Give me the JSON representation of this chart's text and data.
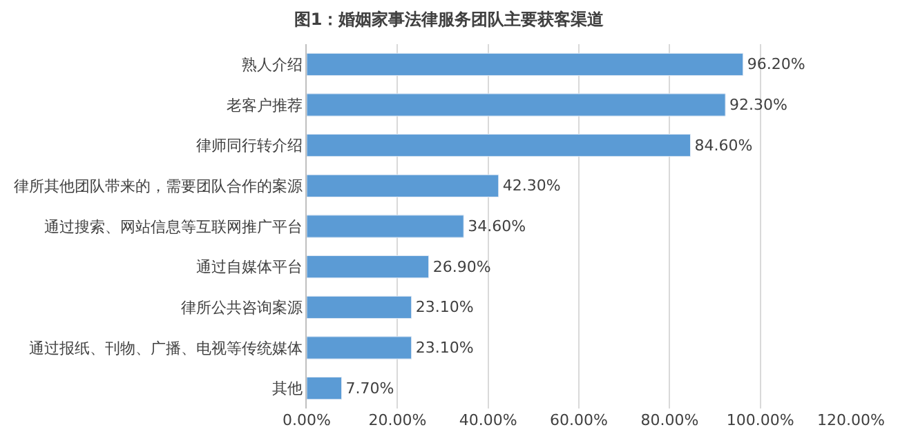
{
  "chart_data": {
    "type": "bar",
    "orientation": "horizontal",
    "title": "图1：婚姻家事法律服务团队主要获客渠道",
    "categories": [
      "熟人介绍",
      "老客户推荐",
      "律师同行转介绍",
      "律所其他团队带来的，需要团队合作的案源",
      "通过搜索、网站信息等互联网推广平台",
      "通过自媒体平台",
      "律所公共咨询案源",
      "通过报纸、刊物、广播、电视等传统媒体",
      "其他"
    ],
    "values": [
      96.2,
      92.3,
      84.6,
      42.3,
      34.6,
      26.9,
      23.1,
      23.1,
      7.7
    ],
    "value_labels": [
      "96.20%",
      "92.30%",
      "84.60%",
      "42.30%",
      "34.60%",
      "26.90%",
      "23.10%",
      "23.10%",
      "7.70%"
    ],
    "color": "#5b9bd5",
    "xlim": [
      0,
      120
    ],
    "xticks": [
      {
        "value": 0,
        "label": "0.00%"
      },
      {
        "value": 20,
        "label": "20.00%"
      },
      {
        "value": 40,
        "label": "40.00%"
      },
      {
        "value": 60,
        "label": "60.00%"
      },
      {
        "value": 80,
        "label": "80.00%"
      },
      {
        "value": 100,
        "label": "100.00%"
      },
      {
        "value": 120,
        "label": "120.00%"
      }
    ],
    "grid": "x"
  }
}
